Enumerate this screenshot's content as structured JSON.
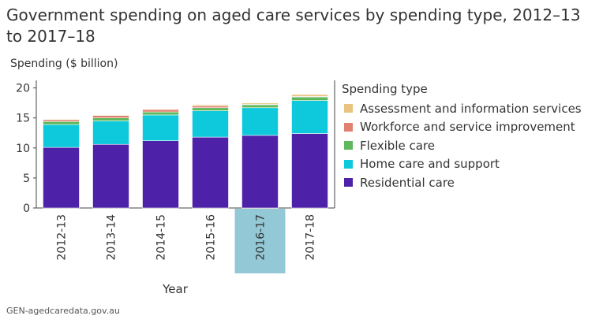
{
  "source_note": "GEN-agedcaredata.gov.au",
  "legend_title": "Spending type",
  "highlighted_category": "2016-17",
  "chart_data": {
    "type": "bar",
    "stacked": true,
    "title": "Government spending on aged care services by spending type, 2012–13 to 2017–18",
    "xlabel": "Year",
    "ylabel": "Spending ($ billion)",
    "ylim": [
      0,
      21
    ],
    "yticks": [
      0,
      5,
      10,
      15,
      20
    ],
    "grid": false,
    "legend_position": "right",
    "categories": [
      "2012-13",
      "2013-14",
      "2014-15",
      "2015-16",
      "2016-17",
      "2017-18"
    ],
    "series": [
      {
        "name": "Residential care",
        "color": "#4e22a8",
        "values": [
          10.1,
          10.6,
          11.2,
          11.8,
          12.1,
          12.4
        ]
      },
      {
        "name": "Home care and support",
        "color": "#0ec8db",
        "values": [
          3.8,
          3.9,
          4.3,
          4.4,
          4.6,
          5.5
        ]
      },
      {
        "name": "Flexible care",
        "color": "#5fb85c",
        "values": [
          0.5,
          0.5,
          0.5,
          0.5,
          0.5,
          0.6
        ]
      },
      {
        "name": "Workforce and service improvement",
        "color": "#e0806f",
        "values": [
          0.3,
          0.4,
          0.4,
          0.3,
          0.1,
          0.1
        ]
      },
      {
        "name": "Assessment and information services",
        "color": "#e9c37f",
        "values": [
          0.1,
          0.1,
          0.1,
          0.2,
          0.2,
          0.3
        ]
      }
    ]
  }
}
